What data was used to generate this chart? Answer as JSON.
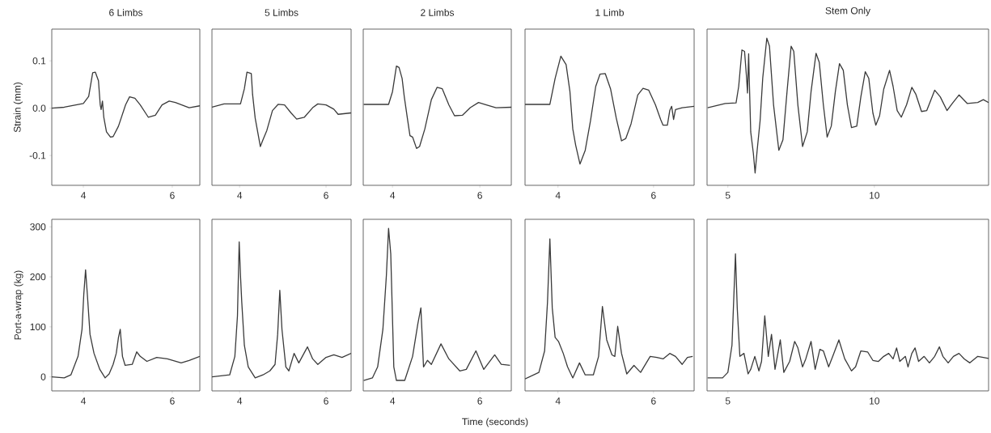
{
  "chart_data": [
    {
      "type": "line",
      "title": "6 Limbs",
      "ylabel": "Strain (mm)",
      "xlim": [
        3.29,
        6.62
      ],
      "ylim": [
        -0.163,
        0.167
      ],
      "xticks": [
        4,
        6
      ],
      "yticks": [
        {
          "value": -0.1,
          "label": "-0.1"
        },
        {
          "value": 0,
          "label": "0.0"
        },
        0.1
      ],
      "x": [
        3.29,
        3.57,
        4.0,
        4.12,
        4.21,
        4.27,
        4.34,
        4.38,
        4.4,
        4.43,
        4.46,
        4.52,
        4.61,
        4.67,
        4.79,
        4.95,
        5.04,
        5.16,
        5.28,
        5.46,
        5.62,
        5.77,
        5.93,
        6.07,
        6.38,
        6.62
      ],
      "series": [
        {
          "color": "#3a3a3a",
          "values": [
            0,
            0.002,
            0.01,
            0.025,
            0.075,
            0.076,
            0.058,
            0.007,
            -0.003,
            0.015,
            -0.019,
            -0.05,
            -0.061,
            -0.06,
            -0.038,
            0.007,
            0.024,
            0.021,
            0.007,
            -0.019,
            -0.015,
            0.007,
            0.015,
            0.012,
            0.001,
            0.005
          ]
        }
      ]
    },
    {
      "type": "line",
      "title": "5 Limbs",
      "xlim": [
        3.36,
        6.58
      ],
      "ylim": [
        -0.163,
        0.167
      ],
      "xticks": [
        4,
        6
      ],
      "tick_labels": "x",
      "x": [
        3.36,
        3.64,
        4.02,
        4.11,
        4.17,
        4.27,
        4.3,
        4.36,
        4.44,
        4.48,
        4.54,
        4.63,
        4.76,
        4.89,
        5.04,
        5.19,
        5.32,
        5.5,
        5.69,
        5.81,
        6.0,
        6.18,
        6.28,
        6.58
      ],
      "series": [
        {
          "color": "#3a3a3a",
          "values": [
            0.002,
            0.009,
            0.009,
            0.041,
            0.076,
            0.073,
            0.029,
            -0.021,
            -0.061,
            -0.081,
            -0.067,
            -0.047,
            -0.005,
            0.008,
            0.007,
            -0.01,
            -0.023,
            -0.019,
            0.001,
            0.009,
            0.007,
            -0.002,
            -0.013,
            -0.01
          ]
        }
      ]
    },
    {
      "type": "line",
      "title": "2 Limbs",
      "xlim": [
        3.33,
        6.72
      ],
      "ylim": [
        -0.163,
        0.167
      ],
      "xticks": [
        4,
        6
      ],
      "tick_labels": "x",
      "x": [
        3.34,
        3.91,
        4.0,
        4.09,
        4.15,
        4.22,
        4.27,
        4.34,
        4.4,
        4.46,
        4.55,
        4.62,
        4.74,
        4.89,
        5.02,
        5.14,
        5.29,
        5.42,
        5.6,
        5.78,
        5.97,
        6.15,
        6.37,
        6.72
      ],
      "series": [
        {
          "color": "#3a3a3a",
          "values": [
            0.008,
            0.008,
            0.035,
            0.089,
            0.086,
            0.063,
            0.024,
            -0.021,
            -0.058,
            -0.061,
            -0.085,
            -0.081,
            -0.044,
            0.018,
            0.044,
            0.041,
            0.007,
            -0.016,
            -0.015,
            0.001,
            0.012,
            0.007,
            0.001,
            0.002
          ]
        }
      ]
    },
    {
      "type": "line",
      "title": "1 Limb",
      "xlim": [
        3.31,
        6.85
      ],
      "ylim": [
        -0.163,
        0.167
      ],
      "xticks": [
        4,
        6
      ],
      "tick_labels": "x",
      "x": [
        3.31,
        3.83,
        3.94,
        4.06,
        4.17,
        4.25,
        4.31,
        4.37,
        4.46,
        4.57,
        4.68,
        4.79,
        4.88,
        4.99,
        5.1,
        5.22,
        5.33,
        5.42,
        5.53,
        5.67,
        5.78,
        5.9,
        6.04,
        6.15,
        6.2,
        6.29,
        6.34,
        6.38,
        6.42,
        6.46,
        6.6,
        6.85
      ],
      "series": [
        {
          "color": "#3a3a3a",
          "values": [
            0.008,
            0.008,
            0.063,
            0.11,
            0.092,
            0.035,
            -0.044,
            -0.078,
            -0.118,
            -0.089,
            -0.027,
            0.046,
            0.072,
            0.073,
            0.041,
            -0.021,
            -0.069,
            -0.064,
            -0.033,
            0.028,
            0.042,
            0.038,
            0.007,
            -0.024,
            -0.036,
            -0.036,
            -0.005,
            0.004,
            -0.024,
            -0.003,
            0.001,
            0.004
          ]
        }
      ]
    },
    {
      "type": "line",
      "title": "Stem Only",
      "xlim": [
        4.29,
        13.9
      ],
      "ylim": [
        -0.163,
        0.167
      ],
      "xticks": [
        5,
        10
      ],
      "tick_labels": "x",
      "x": [
        4.31,
        4.91,
        5.28,
        5.37,
        5.48,
        5.57,
        5.64,
        5.67,
        5.71,
        5.73,
        5.78,
        5.87,
        5.93,
        6.0,
        6.1,
        6.19,
        6.33,
        6.42,
        6.56,
        6.74,
        6.88,
        7.02,
        7.16,
        7.25,
        7.39,
        7.55,
        7.71,
        7.84,
        8.01,
        8.12,
        8.26,
        8.39,
        8.53,
        8.67,
        8.81,
        8.94,
        9.08,
        9.22,
        9.4,
        9.54,
        9.69,
        9.81,
        9.95,
        10.05,
        10.18,
        10.32,
        10.52,
        10.64,
        10.78,
        10.92,
        11.1,
        11.28,
        11.42,
        11.61,
        11.79,
        12.06,
        12.25,
        12.48,
        12.66,
        12.89,
        13.17,
        13.53,
        13.72,
        13.9
      ],
      "series": [
        {
          "color": "#3a3a3a",
          "values": [
            0.001,
            0.01,
            0.011,
            0.046,
            0.123,
            0.12,
            0.063,
            0.032,
            0.115,
            0.063,
            -0.05,
            -0.095,
            -0.137,
            -0.089,
            -0.027,
            0.063,
            0.148,
            0.131,
            0.007,
            -0.089,
            -0.067,
            0.035,
            0.131,
            0.12,
            0.007,
            -0.081,
            -0.05,
            0.035,
            0.116,
            0.097,
            0.007,
            -0.061,
            -0.038,
            0.035,
            0.094,
            0.08,
            0.007,
            -0.041,
            -0.038,
            0.024,
            0.077,
            0.063,
            -0.01,
            -0.036,
            -0.016,
            0.04,
            0.08,
            0.046,
            -0.005,
            -0.019,
            0.007,
            0.044,
            0.029,
            -0.007,
            -0.005,
            0.038,
            0.024,
            -0.005,
            0.01,
            0.028,
            0.01,
            0.012,
            0.018,
            0.012
          ]
        }
      ]
    },
    {
      "type": "line",
      "ylabel": "Port-a-wrap (kg)",
      "xlim": [
        3.29,
        6.62
      ],
      "ylim": [
        -28,
        315
      ],
      "xticks": [
        4,
        6
      ],
      "yticks": [
        0,
        100,
        200,
        300
      ],
      "x": [
        3.29,
        3.57,
        3.72,
        3.88,
        3.97,
        4.01,
        4.05,
        4.09,
        4.15,
        4.24,
        4.37,
        4.49,
        4.58,
        4.67,
        4.74,
        4.79,
        4.83,
        4.88,
        4.94,
        5.1,
        5.2,
        5.28,
        5.43,
        5.65,
        5.89,
        6.2,
        6.38,
        6.62
      ],
      "series": [
        {
          "color": "#3a3a3a",
          "values": [
            0,
            -2,
            4,
            41,
            95,
            165,
            214,
            165,
            85,
            47,
            15,
            -2,
            6,
            25,
            47,
            79,
            95,
            41,
            23,
            25,
            50,
            41,
            31,
            39,
            36,
            28,
            33,
            41
          ]
        }
      ]
    },
    {
      "type": "line",
      "xlim": [
        3.36,
        6.58
      ],
      "ylim": [
        -28,
        315
      ],
      "xticks": [
        4,
        6
      ],
      "tick_labels": "x",
      "x": [
        3.36,
        3.77,
        3.89,
        3.95,
        3.99,
        4.02,
        4.05,
        4.11,
        4.2,
        4.36,
        4.54,
        4.7,
        4.82,
        4.88,
        4.93,
        4.98,
        5.07,
        5.14,
        5.26,
        5.37,
        5.57,
        5.69,
        5.81,
        6.0,
        6.18,
        6.37,
        6.58
      ],
      "series": [
        {
          "color": "#3a3a3a",
          "values": [
            0,
            4,
            41,
            122,
            270,
            203,
            149,
            63,
            20,
            -2,
            4,
            12,
            25,
            85,
            173,
            95,
            20,
            12,
            47,
            28,
            60,
            36,
            25,
            39,
            44,
            39,
            47
          ]
        }
      ]
    },
    {
      "type": "line",
      "xlabel": "Time (seconds)",
      "xlim": [
        3.33,
        6.72
      ],
      "ylim": [
        -28,
        315
      ],
      "xticks": [
        4,
        6
      ],
      "tick_labels": "x",
      "x": [
        3.34,
        3.54,
        3.66,
        3.78,
        3.86,
        3.91,
        3.96,
        4.03,
        4.09,
        4.28,
        4.46,
        4.58,
        4.65,
        4.71,
        4.8,
        4.89,
        5.11,
        5.29,
        5.54,
        5.69,
        5.91,
        6.09,
        6.34,
        6.49,
        6.69
      ],
      "series": [
        {
          "color": "#3a3a3a",
          "values": [
            -7,
            -2,
            20,
            95,
            203,
            297,
            246,
            20,
            -7,
            -7,
            41,
            106,
            138,
            20,
            33,
            25,
            66,
            36,
            12,
            15,
            52,
            15,
            44,
            25,
            23
          ]
        }
      ]
    },
    {
      "type": "line",
      "xlim": [
        3.31,
        6.85
      ],
      "ylim": [
        -28,
        315
      ],
      "xticks": [
        4,
        6
      ],
      "tick_labels": "x",
      "x": [
        3.31,
        3.6,
        3.72,
        3.78,
        3.83,
        3.88,
        3.94,
        4.01,
        4.11,
        4.2,
        4.31,
        4.45,
        4.57,
        4.74,
        4.85,
        4.93,
        5.02,
        5.13,
        5.19,
        5.25,
        5.33,
        5.44,
        5.59,
        5.73,
        5.93,
        6.07,
        6.2,
        6.34,
        6.46,
        6.6,
        6.71,
        6.82
      ],
      "series": [
        {
          "color": "#3a3a3a",
          "values": [
            -4,
            9,
            52,
            149,
            276,
            138,
            79,
            71,
            47,
            20,
            -2,
            28,
            4,
            4,
            41,
            141,
            74,
            44,
            41,
            101,
            47,
            6,
            23,
            9,
            41,
            39,
            36,
            47,
            41,
            25,
            39,
            41
          ]
        }
      ]
    },
    {
      "type": "line",
      "xlim": [
        4.29,
        13.9
      ],
      "ylim": [
        -28,
        315
      ],
      "xticks": [
        5,
        10
      ],
      "tick_labels": "x",
      "x": [
        4.31,
        4.82,
        5.0,
        5.14,
        5.26,
        5.32,
        5.41,
        5.55,
        5.69,
        5.78,
        5.92,
        6.06,
        6.15,
        6.26,
        6.38,
        6.49,
        6.61,
        6.79,
        6.91,
        7.11,
        7.28,
        7.39,
        7.55,
        7.66,
        7.84,
        7.98,
        8.14,
        8.26,
        8.44,
        8.58,
        8.79,
        8.99,
        9.22,
        9.36,
        9.54,
        9.77,
        9.95,
        10.14,
        10.32,
        10.49,
        10.64,
        10.76,
        10.87,
        11.06,
        11.15,
        11.28,
        11.39,
        11.51,
        11.7,
        11.88,
        12.06,
        12.22,
        12.34,
        12.52,
        12.7,
        12.89,
        13.07,
        13.26,
        13.53,
        13.72,
        13.9
      ],
      "series": [
        {
          "color": "#3a3a3a",
          "values": [
            -2,
            -2,
            9,
            63,
            246,
            138,
            41,
            47,
            6,
            15,
            41,
            12,
            31,
            122,
            41,
            85,
            15,
            74,
            9,
            31,
            71,
            58,
            20,
            36,
            71,
            15,
            55,
            52,
            20,
            41,
            74,
            36,
            12,
            20,
            52,
            50,
            33,
            31,
            41,
            47,
            36,
            58,
            31,
            41,
            20,
            47,
            58,
            31,
            41,
            28,
            41,
            60,
            41,
            28,
            41,
            47,
            36,
            28,
            41,
            39,
            37
          ]
        }
      ]
    }
  ]
}
